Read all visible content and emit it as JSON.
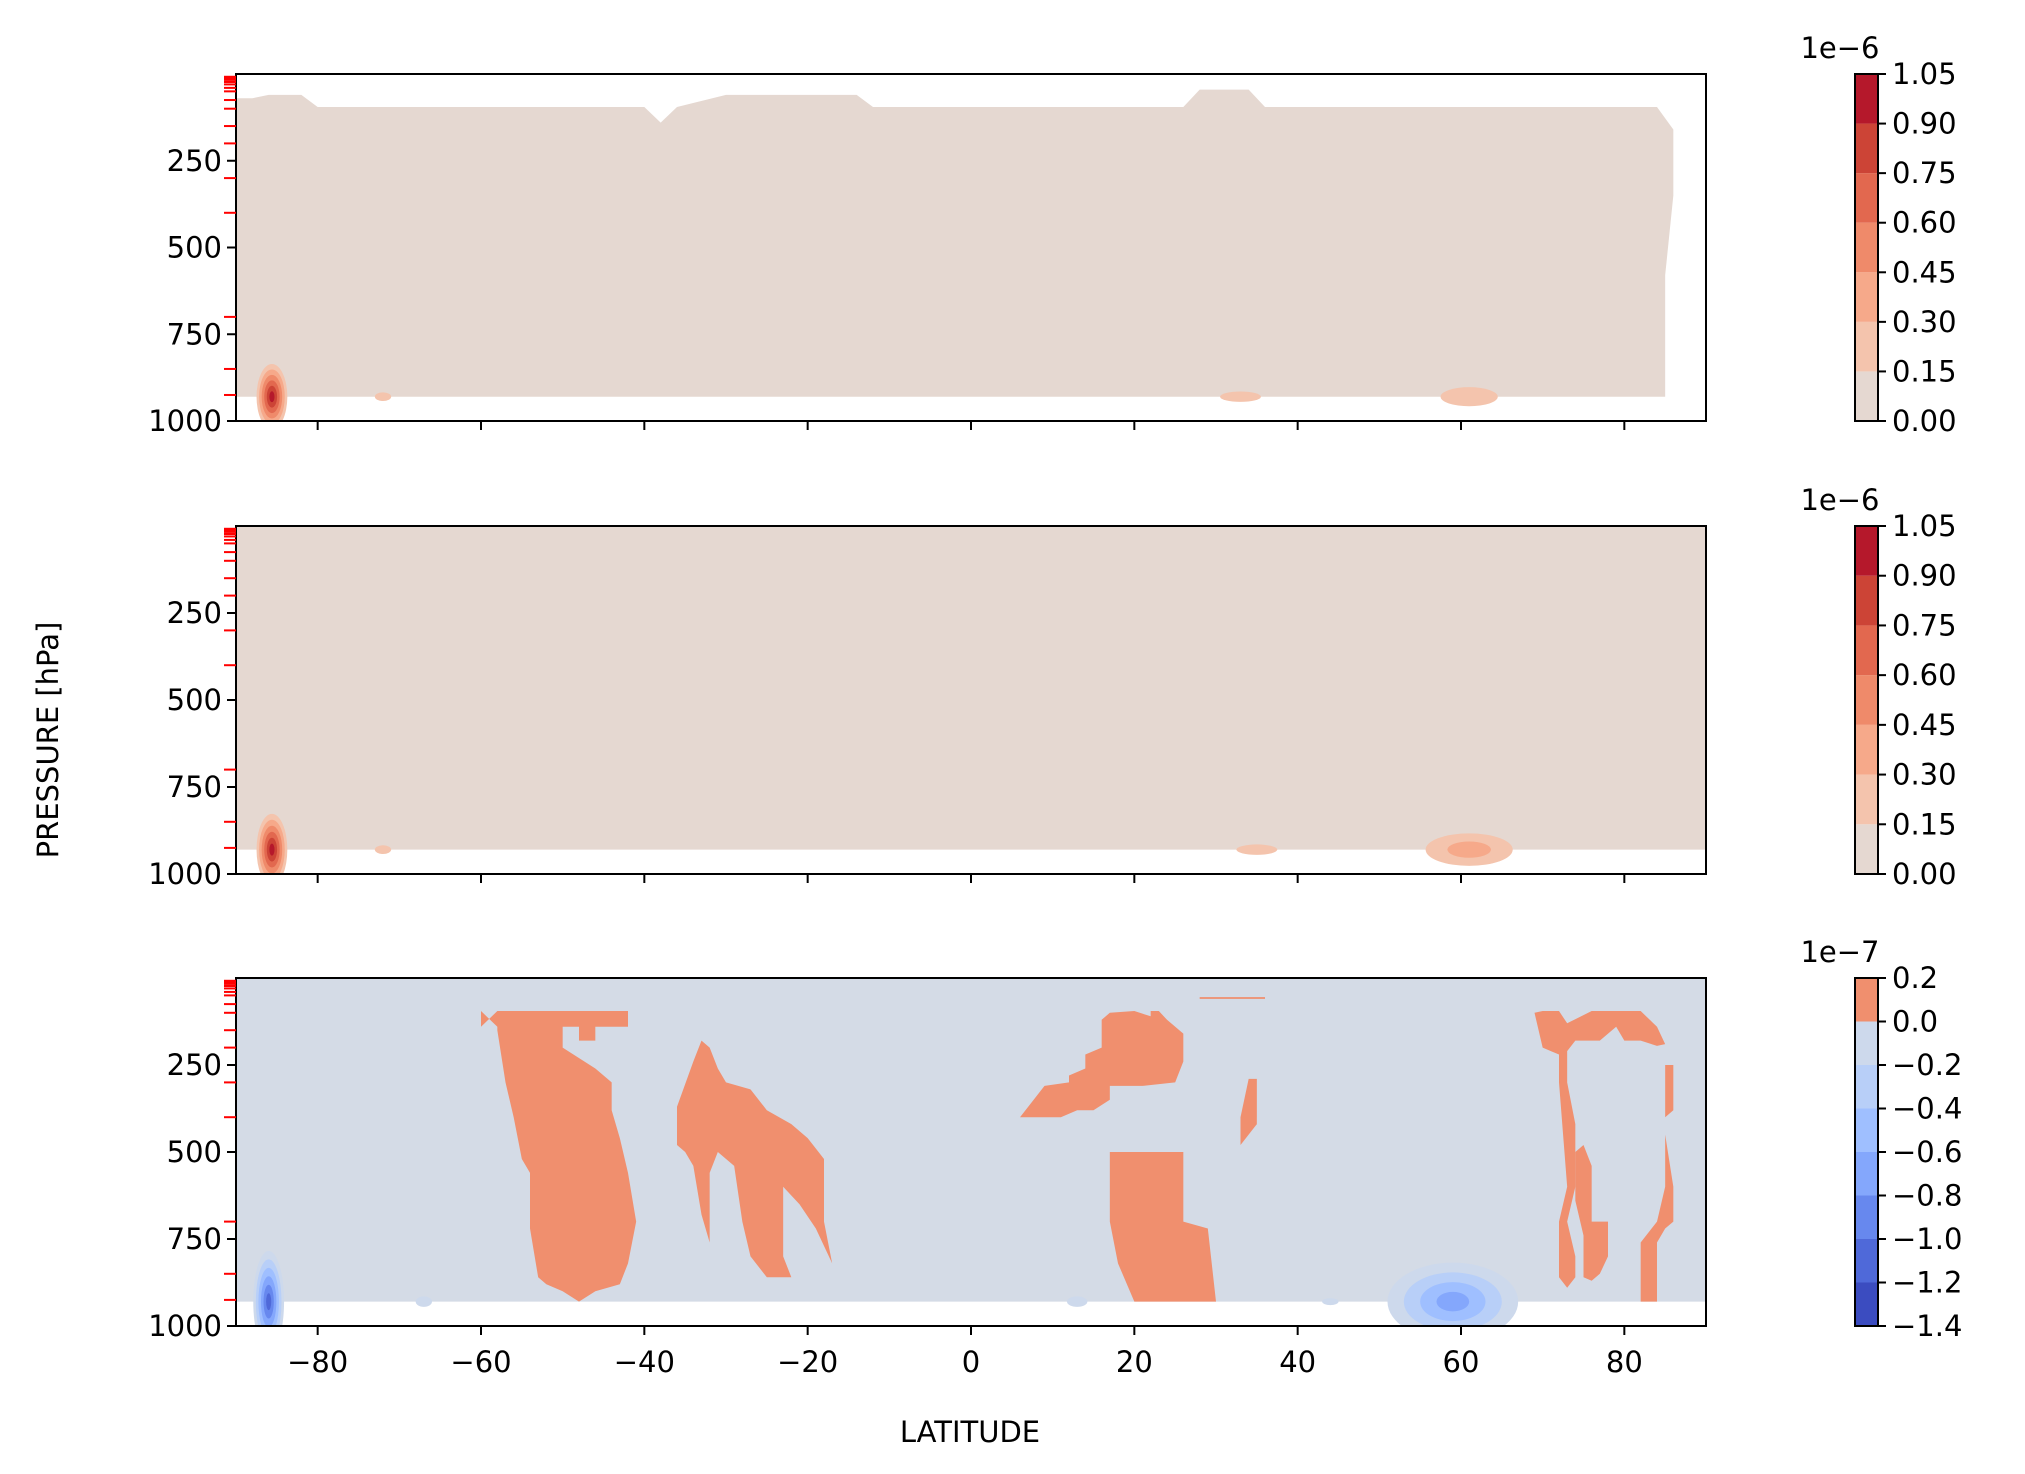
{
  "figure": {
    "ylabel": "PRESSURE [hPa]",
    "xlabel": "LATITUDE"
  },
  "chart_data": [
    {
      "type": "heatmap",
      "xlim": [
        -90,
        90
      ],
      "ylim": [
        1000,
        0
      ],
      "ylabel": "PRESSURE [hPa]",
      "xlabel": "",
      "y_ticks": [
        250,
        500,
        750,
        1000
      ],
      "x_ticks": [
        -80,
        -60,
        -40,
        -20,
        0,
        20,
        40,
        60,
        80
      ],
      "x_ticklabels_shown": false,
      "colorbar": {
        "offset_label": "1e−6",
        "cmap": "coolwarm",
        "levels": [
          0.0,
          0.15,
          0.3,
          0.45,
          0.6,
          0.75,
          0.9,
          1.05
        ],
        "ticklabels": [
          "0.00",
          "0.15",
          "0.30",
          "0.45",
          "0.60",
          "0.75",
          "0.90",
          "1.05"
        ],
        "colors": [
          "#e5d8d1",
          "#f4c4ad",
          "#f6a98a",
          "#ef8a6a",
          "#e2684f",
          "#cc4436",
          "#b5182b"
        ]
      },
      "top_edge": [
        [
          -88,
          70
        ],
        [
          -86,
          60
        ],
        [
          -82,
          60
        ],
        [
          -80,
          95
        ],
        [
          -70,
          95
        ],
        [
          -66,
          95
        ],
        [
          -64,
          95
        ],
        [
          -40,
          95
        ],
        [
          -38,
          140
        ],
        [
          -36,
          95
        ],
        [
          -30,
          60
        ],
        [
          -14,
          60
        ],
        [
          -12,
          95
        ],
        [
          0,
          95
        ],
        [
          20,
          95
        ],
        [
          26,
          95
        ],
        [
          28,
          45
        ],
        [
          34,
          45
        ],
        [
          36,
          95
        ],
        [
          76,
          95
        ],
        [
          84,
          95
        ],
        [
          86,
          160
        ],
        [
          86,
          350
        ],
        [
          85,
          580
        ],
        [
          85,
          930
        ]
      ],
      "bottom_value": 930,
      "hotspots": [
        {
          "lat": -85.6,
          "p": 930,
          "r_lat": 2.2,
          "r_p": 110,
          "levels": [
            1,
            2,
            3,
            4,
            5,
            6
          ]
        },
        {
          "lat": 61,
          "p": 930,
          "r_lat": 7,
          "r_p": 55,
          "levels": [
            1
          ]
        },
        {
          "lat": 33,
          "p": 930,
          "r_lat": 5,
          "r_p": 30,
          "levels": [
            1
          ]
        },
        {
          "lat": -72,
          "p": 930,
          "r_lat": 2,
          "r_p": 25,
          "levels": [
            1
          ]
        }
      ]
    },
    {
      "type": "heatmap",
      "xlim": [
        -90,
        90
      ],
      "ylim": [
        1000,
        0
      ],
      "ylabel": "PRESSURE [hPa]",
      "xlabel": "",
      "y_ticks": [
        250,
        500,
        750,
        1000
      ],
      "x_ticks": [
        -80,
        -60,
        -40,
        -20,
        0,
        20,
        40,
        60,
        80
      ],
      "x_ticklabels_shown": false,
      "colorbar": {
        "offset_label": "1e−6",
        "cmap": "coolwarm",
        "levels": [
          0.0,
          0.15,
          0.3,
          0.45,
          0.6,
          0.75,
          0.9,
          1.05
        ],
        "ticklabels": [
          "0.00",
          "0.15",
          "0.30",
          "0.45",
          "0.60",
          "0.75",
          "0.90",
          "1.05"
        ],
        "colors": [
          "#e5d8d1",
          "#f4c4ad",
          "#f6a98a",
          "#ef8a6a",
          "#e2684f",
          "#cc4436",
          "#b5182b"
        ]
      },
      "top_edge": [
        [
          -90,
          0
        ],
        [
          90,
          0
        ],
        [
          90,
          930
        ]
      ],
      "bottom_value": 930,
      "hotspots": [
        {
          "lat": -85.6,
          "p": 930,
          "r_lat": 2.2,
          "r_p": 120,
          "levels": [
            1,
            2,
            3,
            4,
            5,
            6
          ]
        },
        {
          "lat": 61,
          "p": 930,
          "r_lat": 8,
          "r_p": 70,
          "levels": [
            1,
            2
          ]
        },
        {
          "lat": 35,
          "p": 930,
          "r_lat": 5,
          "r_p": 30,
          "levels": [
            1
          ]
        },
        {
          "lat": -72,
          "p": 930,
          "r_lat": 2,
          "r_p": 25,
          "levels": [
            1
          ]
        }
      ]
    },
    {
      "type": "heatmap",
      "xlim": [
        -90,
        90
      ],
      "ylim": [
        1000,
        0
      ],
      "ylabel": "PRESSURE [hPa]",
      "xlabel": "LATITUDE",
      "y_ticks": [
        250,
        500,
        750,
        1000
      ],
      "x_ticks": [
        -80,
        -60,
        -40,
        -20,
        0,
        20,
        40,
        60,
        80
      ],
      "x_ticklabels_shown": true,
      "x_ticklabels": [
        "−80",
        "−60",
        "−40",
        "−20",
        "0",
        "20",
        "40",
        "60",
        "80"
      ],
      "colorbar": {
        "offset_label": "1e−7",
        "cmap": "coolwarm",
        "levels": [
          -1.4,
          -1.2,
          -1.0,
          -0.8,
          -0.6,
          -0.4,
          -0.2,
          0.0,
          0.2
        ],
        "ticklabels": [
          "−1.4",
          "−1.2",
          "−1.0",
          "−0.8",
          "−0.6",
          "−0.4",
          "−0.2",
          "0.0",
          "0.2"
        ],
        "colors": [
          "#3b4cc0",
          "#4f69d9",
          "#6788ee",
          "#84a7fc",
          "#9fbfff",
          "#b8cff8",
          "#cdd9ec",
          "#d4dbe6"
        ],
        "pos_color": "#f08f6e"
      },
      "fill_range": [
        0,
        930
      ],
      "positive_regions": [
        [
          [
            -60,
            95
          ],
          [
            -60,
            140
          ],
          [
            -58,
            95
          ],
          [
            -42,
            95
          ],
          [
            -42,
            140
          ],
          [
            -44,
            140
          ],
          [
            -46,
            140
          ],
          [
            -46,
            180
          ],
          [
            -48,
            180
          ],
          [
            -48,
            140
          ],
          [
            -50,
            140
          ],
          [
            -50,
            180
          ],
          [
            -50,
            200
          ],
          [
            -46,
            260
          ],
          [
            -44,
            300
          ],
          [
            -44,
            380
          ],
          [
            -43,
            460
          ],
          [
            -42,
            560
          ],
          [
            -41,
            700
          ],
          [
            -42,
            820
          ],
          [
            -43,
            880
          ],
          [
            -46,
            900
          ],
          [
            -48,
            930
          ],
          [
            -50,
            900
          ],
          [
            -52,
            880
          ],
          [
            -53,
            860
          ],
          [
            -54,
            720
          ],
          [
            -54,
            560
          ],
          [
            -55,
            520
          ],
          [
            -56,
            400
          ],
          [
            -57,
            300
          ],
          [
            -58,
            150
          ],
          [
            -58,
            140
          ]
        ],
        [
          [
            -36,
            370
          ],
          [
            -34,
            240
          ],
          [
            -33,
            180
          ],
          [
            -32,
            200
          ],
          [
            -31,
            260
          ],
          [
            -30,
            300
          ],
          [
            -27,
            320
          ],
          [
            -25,
            380
          ],
          [
            -22,
            420
          ],
          [
            -20,
            460
          ],
          [
            -18,
            520
          ],
          [
            -18,
            700
          ],
          [
            -17,
            820
          ],
          [
            -19,
            720
          ],
          [
            -21,
            650
          ],
          [
            -23,
            600
          ],
          [
            -23,
            800
          ],
          [
            -22,
            860
          ],
          [
            -25,
            860
          ],
          [
            -27,
            800
          ],
          [
            -28,
            700
          ],
          [
            -29,
            540
          ],
          [
            -31,
            500
          ],
          [
            -32,
            560
          ],
          [
            -32,
            700
          ],
          [
            -32,
            760
          ],
          [
            -33,
            680
          ],
          [
            -34,
            540
          ],
          [
            -35,
            500
          ],
          [
            -36,
            480
          ]
        ],
        [
          [
            6,
            400
          ],
          [
            9,
            310
          ],
          [
            12,
            300
          ],
          [
            12,
            280
          ],
          [
            14,
            260
          ],
          [
            14,
            220
          ],
          [
            16,
            200
          ],
          [
            16,
            120
          ],
          [
            17,
            100
          ],
          [
            20,
            95
          ],
          [
            22,
            110
          ],
          [
            22,
            95
          ],
          [
            23,
            95
          ],
          [
            24,
            120
          ],
          [
            26,
            160
          ],
          [
            26,
            240
          ],
          [
            25,
            300
          ],
          [
            21,
            310
          ],
          [
            17,
            310
          ],
          [
            17,
            350
          ],
          [
            15,
            380
          ],
          [
            13,
            380
          ],
          [
            11,
            400
          ]
        ],
        [
          [
            17,
            500
          ],
          [
            26,
            500
          ],
          [
            26,
            700
          ],
          [
            29,
            720
          ],
          [
            30,
            930
          ],
          [
            20,
            930
          ],
          [
            18,
            820
          ],
          [
            17,
            700
          ]
        ],
        [
          [
            28,
            55
          ],
          [
            36,
            55
          ],
          [
            36,
            60
          ],
          [
            28,
            60
          ]
        ],
        [
          [
            34,
            290
          ],
          [
            35,
            290
          ],
          [
            35,
            420
          ],
          [
            33,
            480
          ],
          [
            33,
            400
          ]
        ],
        [
          [
            69,
            100
          ],
          [
            70,
            95
          ],
          [
            72,
            95
          ],
          [
            73,
            130
          ],
          [
            76,
            95
          ],
          [
            78,
            95
          ],
          [
            79,
            95
          ],
          [
            80,
            95
          ],
          [
            81,
            95
          ],
          [
            82,
            95
          ],
          [
            84,
            140
          ],
          [
            85,
            190
          ],
          [
            84,
            195
          ],
          [
            82,
            180
          ],
          [
            80,
            180
          ],
          [
            79,
            140
          ],
          [
            77,
            180
          ],
          [
            74,
            180
          ],
          [
            73,
            210
          ],
          [
            73,
            300
          ],
          [
            74,
            420
          ],
          [
            74,
            600
          ],
          [
            73,
            700
          ],
          [
            74,
            800
          ],
          [
            74,
            860
          ],
          [
            73,
            890
          ],
          [
            72,
            860
          ],
          [
            72,
            700
          ],
          [
            73,
            600
          ],
          [
            72,
            300
          ],
          [
            72,
            220
          ],
          [
            71,
            210
          ],
          [
            70,
            200
          ]
        ],
        [
          [
            74,
            500
          ],
          [
            75,
            480
          ],
          [
            76,
            540
          ],
          [
            76,
            640
          ],
          [
            76,
            700
          ],
          [
            78,
            700
          ],
          [
            78,
            800
          ],
          [
            77,
            850
          ],
          [
            76,
            870
          ],
          [
            75,
            860
          ],
          [
            75,
            800
          ],
          [
            75,
            740
          ],
          [
            74,
            640
          ]
        ],
        [
          [
            85,
            250
          ],
          [
            86,
            250
          ],
          [
            86,
            380
          ],
          [
            85,
            400
          ],
          [
            85,
            450
          ],
          [
            86,
            600
          ],
          [
            86,
            700
          ],
          [
            85,
            720
          ],
          [
            84,
            760
          ],
          [
            84,
            930
          ],
          [
            82,
            930
          ],
          [
            82,
            860
          ],
          [
            82,
            760
          ],
          [
            84,
            700
          ],
          [
            85,
            600
          ]
        ]
      ],
      "negative_regions": [
        {
          "lat": -86,
          "p": 930,
          "r_lat": 2.2,
          "r_p": 170,
          "levels": [
            1,
            2,
            3,
            4,
            5,
            6
          ]
        },
        {
          "lat": 59,
          "p": 930,
          "r_lat": 10,
          "r_p": 140,
          "levels": [
            1,
            2,
            3,
            4
          ]
        },
        {
          "lat": 13,
          "p": 930,
          "r_lat": 2.5,
          "r_p": 30,
          "levels": [
            1
          ]
        },
        {
          "lat": -67,
          "p": 930,
          "r_lat": 2,
          "r_p": 30,
          "levels": [
            1
          ]
        },
        {
          "lat": 44,
          "p": 930,
          "r_lat": 2,
          "r_p": 20,
          "levels": [
            1
          ]
        }
      ]
    }
  ]
}
